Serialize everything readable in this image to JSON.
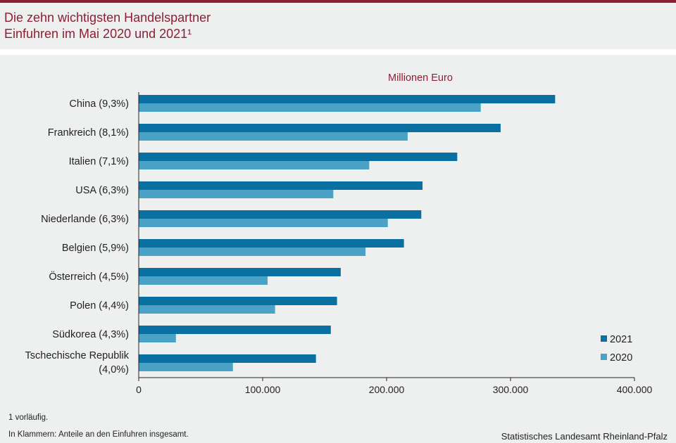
{
  "header": {
    "title_line1": "Die zehn wichtigsten Handelspartner",
    "title_line2": "Einfuhren im Mai 2020 und 2021¹"
  },
  "colors": {
    "accent": "#8c1f34",
    "series_2021": "#0a70a1",
    "series_2020": "#4aa3c7"
  },
  "chart_data": {
    "type": "bar",
    "orientation": "horizontal",
    "unit_label": "Millionen  Euro",
    "categories": [
      [
        "China (9,3%)"
      ],
      [
        "Frankreich (8,1%)"
      ],
      [
        "Italien (7,1%)"
      ],
      [
        "USA (6,3%)"
      ],
      [
        "Niederlande (6,3%)"
      ],
      [
        "Belgien (5,9%)"
      ],
      [
        "Österreich (4,5%)"
      ],
      [
        "Polen (4,4%)"
      ],
      [
        "Südkorea (4,3%)"
      ],
      [
        "Tschechische Republik",
        "(4,0%)"
      ]
    ],
    "series": [
      {
        "name": "2021",
        "values": [
          336000,
          292000,
          257000,
          229000,
          228000,
          214000,
          163000,
          160000,
          155000,
          143000
        ]
      },
      {
        "name": "2020",
        "values": [
          276000,
          217000,
          186000,
          157000,
          201000,
          183000,
          104000,
          110000,
          30000,
          76000
        ]
      }
    ],
    "xlim": [
      0,
      400000
    ],
    "xticks": [
      0,
      100000,
      200000,
      300000,
      400000
    ],
    "xtick_labels": [
      "0",
      "100.000",
      "200.000",
      "300.000",
      "400.000"
    ],
    "legend_position": "bottom-right",
    "grid": false
  },
  "footer": {
    "note1": "1 vorläufig.",
    "note2": "In Klammern: Anteile an den Einfuhren  insgesamt.",
    "source": "Statistisches Landesamt Rheinland-Pfalz"
  }
}
